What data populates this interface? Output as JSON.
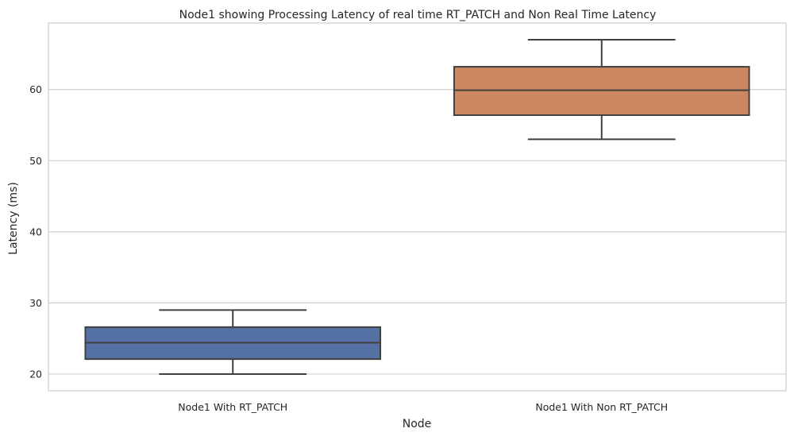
{
  "chart_data": {
    "type": "box",
    "title": "Node1 showing Processing Latency of real time RT_PATCH and Non Real Time Latency",
    "xlabel": "Node",
    "ylabel": "Latency (ms)",
    "categories": [
      "Node1  With RT_PATCH",
      "Node1 With Non RT_PATCH"
    ],
    "boxes": [
      {
        "category": "Node1  With RT_PATCH",
        "whisker_low": 20,
        "q1": 22.1,
        "median": 24.4,
        "q3": 26.6,
        "whisker_high": 29,
        "color": "#5470a4"
      },
      {
        "category": "Node1 With Non RT_PATCH",
        "whisker_low": 53,
        "q1": 56.4,
        "median": 59.9,
        "q3": 63.2,
        "whisker_high": 67,
        "color": "#cd8760"
      }
    ],
    "ylim": [
      17.65,
      69.35
    ],
    "yticks": [
      20,
      30,
      40,
      50,
      60
    ],
    "grid": true,
    "grid_color": "#d0d0d0",
    "box_edge_color": "#404040"
  }
}
